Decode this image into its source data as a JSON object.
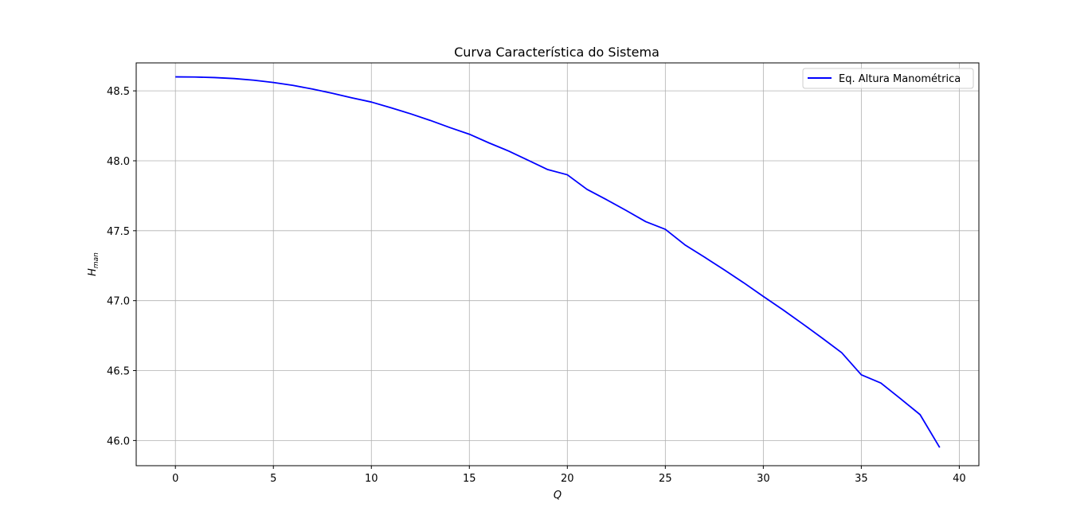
{
  "chart_data": {
    "type": "line",
    "title": "Curva Característica do Sistema",
    "xlabel": "Q",
    "ylabel_main": "H",
    "ylabel_sub": "man",
    "xlim": [
      -2,
      41
    ],
    "ylim": [
      45.82,
      48.7
    ],
    "x_ticks": [
      0,
      5,
      10,
      15,
      20,
      25,
      30,
      35,
      40
    ],
    "x_tick_labels": [
      "0",
      "5",
      "10",
      "15",
      "20",
      "25",
      "30",
      "35",
      "40"
    ],
    "y_ticks": [
      46.0,
      46.5,
      47.0,
      47.5,
      48.0,
      48.5
    ],
    "y_tick_labels": [
      "46.0",
      "46.5",
      "47.0",
      "47.5",
      "48.0",
      "48.5"
    ],
    "grid": true,
    "legend_position": "upper-right",
    "series": [
      {
        "name": "Eq. Altura Manométrica",
        "color": "#0000ff",
        "x": [
          0,
          1,
          2,
          3,
          4,
          5,
          6,
          7,
          8,
          9,
          10,
          11,
          12,
          13,
          14,
          15,
          16,
          17,
          18,
          19,
          20,
          21,
          22,
          23,
          24,
          25,
          26,
          27,
          28,
          29,
          30,
          31,
          32,
          33,
          34,
          35,
          36,
          37,
          38,
          39
        ],
        "y": [
          48.6,
          48.599,
          48.595,
          48.588,
          48.576,
          48.56,
          48.539,
          48.513,
          48.483,
          48.45,
          48.42,
          48.379,
          48.336,
          48.289,
          48.238,
          48.19,
          48.128,
          48.07,
          48.004,
          47.937,
          47.9,
          47.796,
          47.722,
          47.645,
          47.565,
          47.51,
          47.399,
          47.311,
          47.221,
          47.128,
          47.03,
          46.935,
          46.835,
          46.733,
          46.628,
          46.47,
          46.411,
          46.299,
          46.185,
          45.95
        ]
      }
    ]
  }
}
